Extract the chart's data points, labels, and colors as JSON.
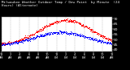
{
  "title": "Milwaukee Weather Outdoor Temp / Dew Point  by Minute  (24 Hours) (Alternate)",
  "bg_color": "#000000",
  "plot_bg_color": "#ffffff",
  "temp_color": "#ff0000",
  "dew_color": "#0000ff",
  "grid_color": "#888888",
  "ylim": [
    38,
    72
  ],
  "yticks": [
    40,
    45,
    50,
    55,
    60,
    65,
    70
  ],
  "ytick_labels": [
    "40",
    "45",
    "50",
    "55",
    "60",
    "65",
    "70"
  ],
  "xlim": [
    0,
    1440
  ],
  "ylabel_fontsize": 3.2,
  "xlabel_fontsize": 2.5,
  "title_fontsize": 3.0,
  "n_minutes": 1440
}
